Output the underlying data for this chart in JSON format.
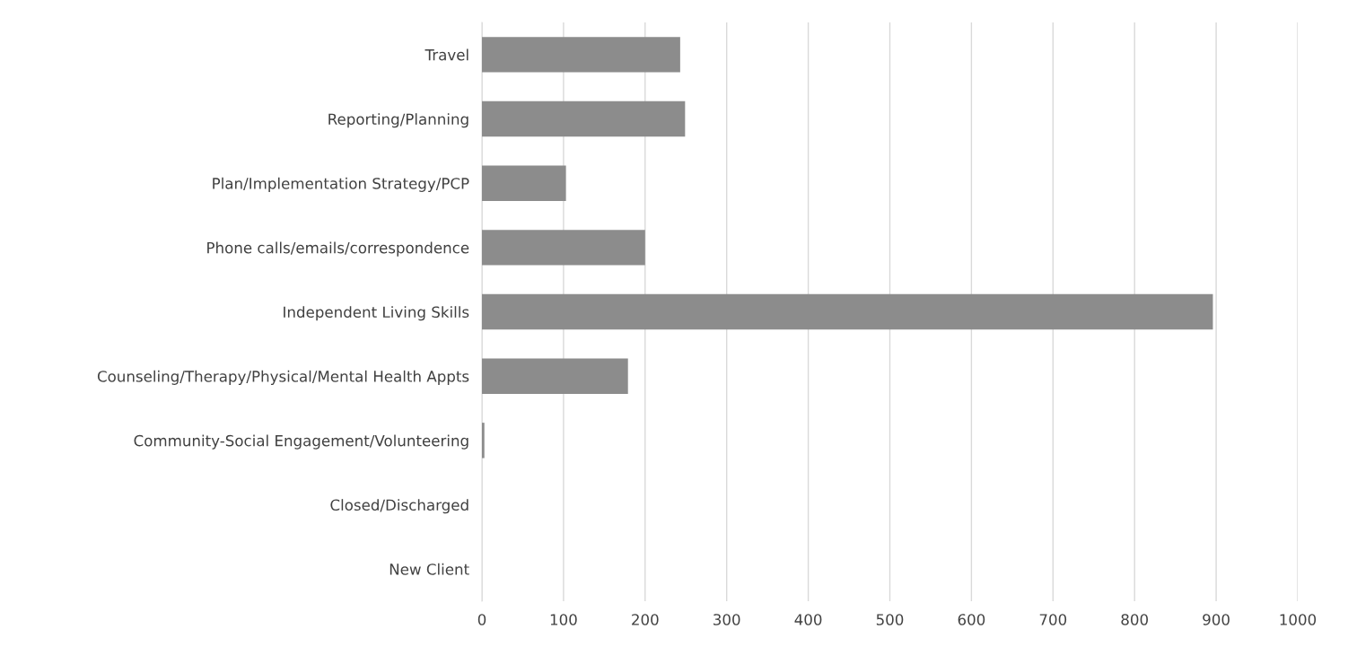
{
  "chart_data": {
    "type": "bar",
    "orientation": "horizontal",
    "categories": [
      "Travel",
      "Reporting/Planning",
      "Plan/Implementation Strategy/PCP",
      "Phone calls/emails/correspondence",
      "Independent Living Skills",
      "Counseling/Therapy/Physical/Mental Health Appts",
      "Community-Social Engagement/Volunteering",
      "Closed/Discharged",
      "New Client"
    ],
    "values": [
      243,
      249,
      103,
      200,
      896,
      179,
      3,
      0,
      0
    ],
    "color": "#8c8c8c",
    "xlim": [
      0,
      1000
    ],
    "xticks": [
      0,
      100,
      200,
      300,
      400,
      500,
      600,
      700,
      800,
      900,
      1000
    ],
    "grid": "x"
  }
}
